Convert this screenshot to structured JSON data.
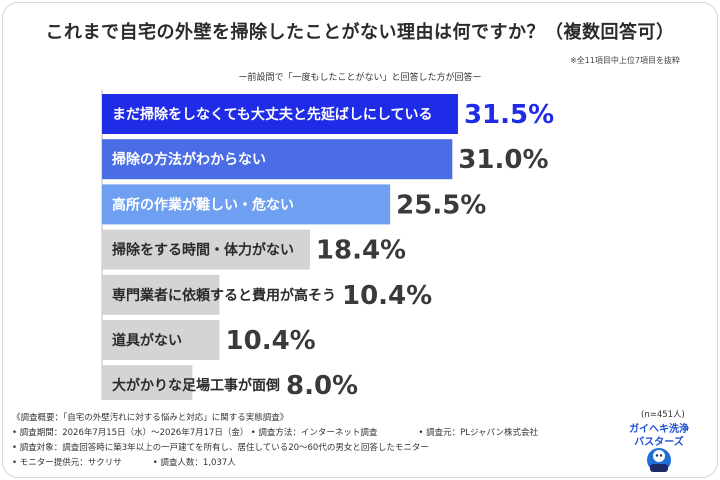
{
  "title": "これまで自宅の外壁を掃除したことがない理由は何ですか？（複数回答可）",
  "note": "※全11項目中上位7項目を抜粋",
  "subtitle": "ー前設問で「一度もしたことがない」と回答した方が回答ー",
  "n_label": "(n=451人)",
  "colors": {
    "rank1": "#1f2be6",
    "rank2": "#4a6de6",
    "rank3": "#6e9ff0",
    "other": "#d4d4d4",
    "value_rank1": "#1f2be6",
    "value_other": "#3a3a3a"
  },
  "chart_data": {
    "type": "bar",
    "orientation": "horizontal",
    "categories": [
      "まだ掃除をしなくても大丈夫と先延ばしにしている",
      "掃除の方法がわからない",
      "高所の作業が難しい・危ない",
      "掃除をする時間・体力がない",
      "専門業者に依頼すると費用が高そう",
      "道具がない",
      "大がかりな足場工事が面倒"
    ],
    "values": [
      31.5,
      31.0,
      25.5,
      18.4,
      10.4,
      10.4,
      8.0
    ],
    "value_labels": [
      "31.5%",
      "31.0%",
      "25.5%",
      "18.4%",
      "10.4%",
      "10.4%",
      "8.0%"
    ],
    "unit": "%",
    "xlim": [
      0,
      50
    ],
    "grid": false,
    "legend": "none"
  },
  "footer": {
    "survey_overview": "《調査概要：「自宅の外壁汚れに対する悩みと対応」に関する実態調査》",
    "period": "• 調査期間：2026年7月15日（水）〜2026年7月17日（金）",
    "method": "• 調査方法：インターネット調査",
    "client": "• 調査元：PLジャパン株式会社",
    "target": "• 調査対象：調査回答時に築3年以上の一戸建てを所有し、居住している20〜60代の男女と回答したモニター",
    "monitor": "• モニター提供元：サクリサ",
    "respondents": "• 調査人数：1,037人"
  },
  "logo": {
    "line1": "ガイヘキ洗浄",
    "line2": "バスターズ"
  }
}
